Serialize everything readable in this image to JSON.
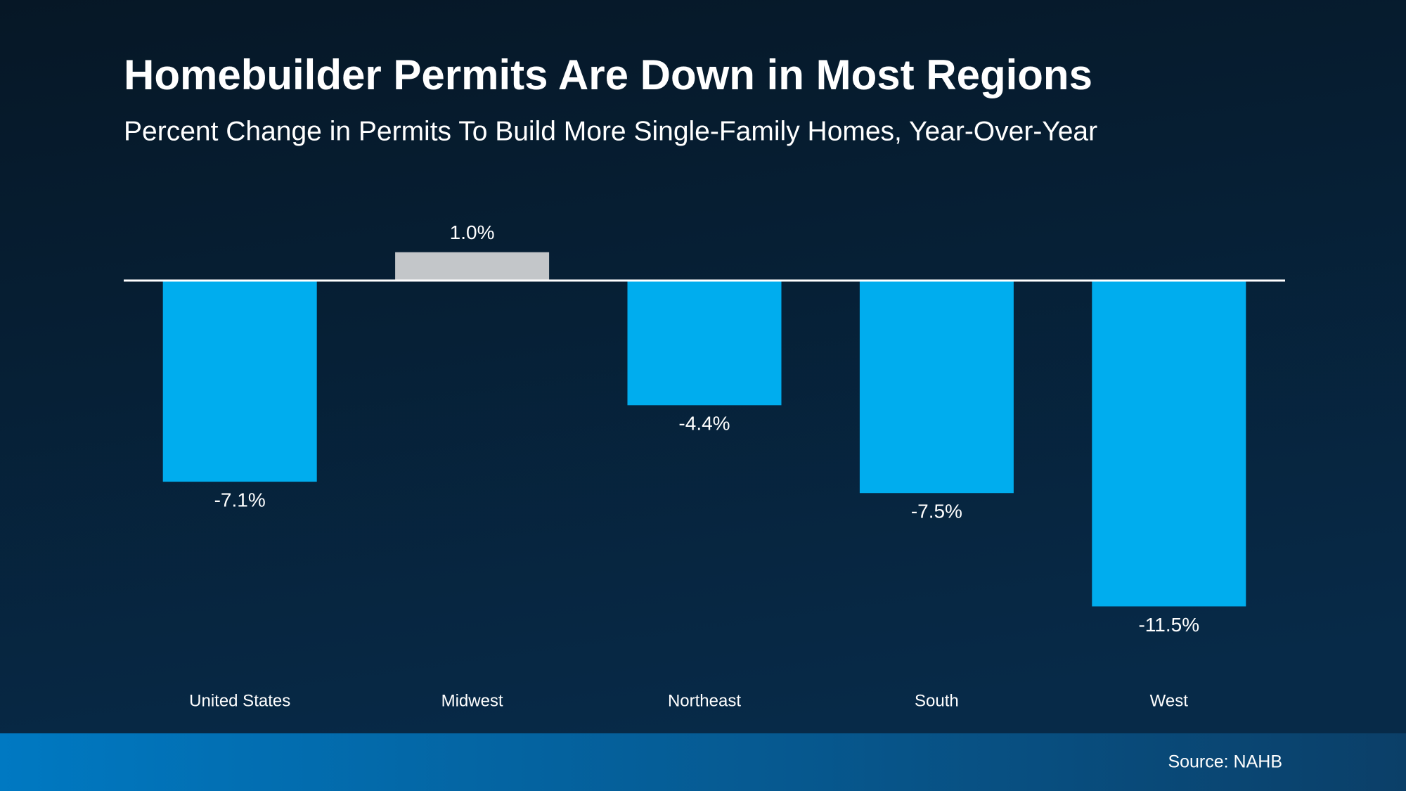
{
  "chart_data": {
    "type": "bar",
    "title": "Homebuilder Permits Are Down in Most Regions",
    "subtitle": "Percent Change in Permits To Build More Single-Family Homes, Year-Over-Year",
    "categories": [
      "United States",
      "Midwest",
      "Northeast",
      "South",
      "West"
    ],
    "values": [
      -7.1,
      1.0,
      -4.4,
      -7.5,
      -11.5
    ],
    "value_labels": [
      "-7.1%",
      "1.0%",
      "-4.4%",
      "-7.5%",
      "-11.5%"
    ],
    "colors": [
      "#00adee",
      "#c3c6c9",
      "#00adee",
      "#00adee",
      "#00adee"
    ],
    "source": "Source: NAHB"
  }
}
